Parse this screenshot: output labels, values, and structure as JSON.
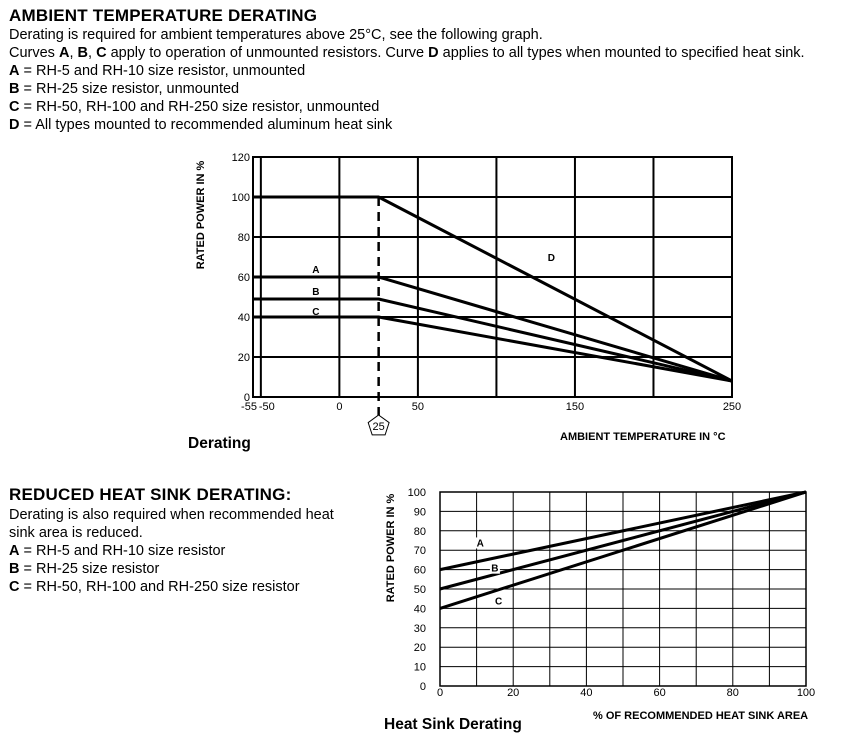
{
  "section1": {
    "title": "AMBIENT TEMPERATURE DERATING",
    "line1": "Derating is required for ambient temperatures above 25°C, see the following graph.",
    "line2": {
      "pre": "Curves ",
      "a": "A",
      "sep1": ", ",
      "b": "B",
      "sep2": ", ",
      "c": "C",
      "mid": " apply to operation of unmounted resistors.  Curve ",
      "d": "D",
      "post": " applies to all types when mounted to specified heat sink."
    },
    "items": [
      {
        "key": "A",
        "text": " = RH-5 and RH-10 size resistor, unmounted"
      },
      {
        "key": "B",
        "text": " = RH-25 size resistor, unmounted"
      },
      {
        "key": "C",
        "text": " = RH-50, RH-100 and RH-250 size resistor, unmounted"
      },
      {
        "key": "D",
        "text": " = All types mounted to recommended aluminum heat sink"
      }
    ]
  },
  "section2": {
    "title": "REDUCED HEAT SINK DERATING:",
    "line1": "Derating is also required when recommended heat",
    "line2": "sink area is reduced.",
    "items": [
      {
        "key": "A",
        "text": " = RH-5 and RH-10 size resistor"
      },
      {
        "key": "B",
        "text": " = RH-25 size resistor"
      },
      {
        "key": "C",
        "text": " = RH-50, RH-100 and RH-250 size resistor"
      }
    ]
  },
  "chart_data": [
    {
      "type": "line",
      "title": "Derating",
      "xlabel": "AMBIENT TEMPERATURE IN °C",
      "ylabel": "RATED POWER IN %",
      "xlim": [
        -55,
        250
      ],
      "ylim": [
        0,
        120
      ],
      "x_ticks": [
        -55,
        -50,
        0,
        50,
        150,
        250
      ],
      "y_ticks": [
        0,
        20,
        40,
        60,
        80,
        100,
        120
      ],
      "grid": true,
      "marker": {
        "x": 25,
        "label": "25"
      },
      "series": [
        {
          "name": "A",
          "x": [
            -55,
            25,
            250
          ],
          "y": [
            60,
            60,
            8
          ]
        },
        {
          "name": "B",
          "x": [
            -55,
            25,
            250
          ],
          "y": [
            49,
            49,
            8
          ]
        },
        {
          "name": "C",
          "x": [
            -55,
            25,
            250
          ],
          "y": [
            40,
            40,
            8
          ]
        },
        {
          "name": "D",
          "x": [
            -55,
            25,
            250
          ],
          "y": [
            100,
            100,
            8
          ]
        }
      ]
    },
    {
      "type": "line",
      "title": "Heat Sink Derating",
      "xlabel": "% OF RECOMMENDED HEAT SINK AREA",
      "ylabel": "RATED POWER IN %",
      "xlim": [
        0,
        100
      ],
      "ylim": [
        0,
        100
      ],
      "x_ticks": [
        0,
        20,
        40,
        60,
        80,
        100
      ],
      "y_ticks": [
        0,
        10,
        20,
        30,
        40,
        50,
        60,
        70,
        80,
        90,
        100
      ],
      "grid": true,
      "series": [
        {
          "name": "A",
          "x": [
            0,
            100
          ],
          "y": [
            60,
            100
          ]
        },
        {
          "name": "B",
          "x": [
            0,
            100
          ],
          "y": [
            50,
            100
          ]
        },
        {
          "name": "C",
          "x": [
            0,
            100
          ],
          "y": [
            40,
            100
          ]
        }
      ]
    }
  ]
}
